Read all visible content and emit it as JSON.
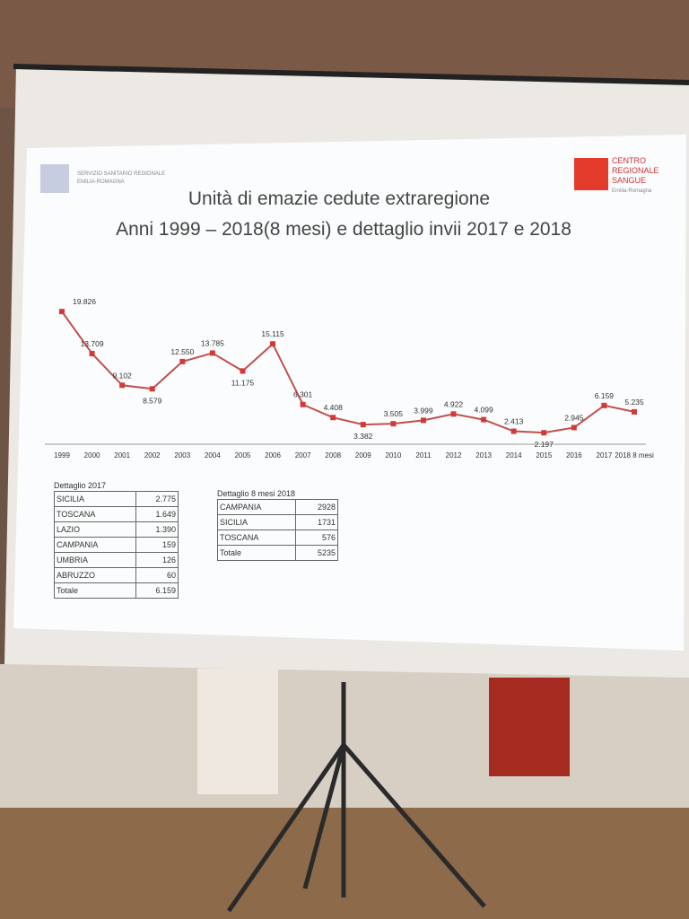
{
  "slide": {
    "header_left": [
      "SERVIZIO SANITARIO REGIONALE",
      "EMILIA-ROMAGNA"
    ],
    "header_right": [
      "CENTRO",
      "REGIONALE",
      "SANGUE",
      "Emilia-Romagna"
    ],
    "title": [
      "Unità di emazie cedute extraregione",
      "Anni 1999 – 2018(8 mesi) e dettaglio invii 2017 e 2018"
    ]
  },
  "chart_data": {
    "type": "line",
    "color": "#c0504d",
    "categories": [
      "1999",
      "2000",
      "2001",
      "2002",
      "2003",
      "2004",
      "2005",
      "2006",
      "2007",
      "2008",
      "2009",
      "2010",
      "2011",
      "2012",
      "2013",
      "2014",
      "2015",
      "2016",
      "2017",
      "2018 8 mesi"
    ],
    "values": [
      19826,
      13709,
      9102,
      8579,
      12550,
      13785,
      11175,
      15115,
      6301,
      4408,
      3382,
      3505,
      3999,
      4922,
      4099,
      2413,
      2197,
      2945,
      6159,
      5235
    ],
    "value_labels": [
      "19.826",
      "13.709",
      "9.102",
      "8.579",
      "12.550",
      "13.785",
      "11.175",
      "15.115",
      "6.301",
      "4.408",
      "3.382",
      "3.505",
      "3.999",
      "4.922",
      "4.099",
      "2.413",
      "2.197",
      "2.945",
      "6.159",
      "5.235"
    ]
  },
  "tables": [
    {
      "title": "Dettaglio 2017",
      "rows": [
        [
          "SICILIA",
          "2.775"
        ],
        [
          "TOSCANA",
          "1.649"
        ],
        [
          "LAZIO",
          "1.390"
        ],
        [
          "CAMPANIA",
          "159"
        ],
        [
          "UMBRIA",
          "126"
        ],
        [
          "ABRUZZO",
          "60"
        ],
        [
          "Totale",
          "6.159"
        ]
      ]
    },
    {
      "title": "Dettaglio 8 mesi 2018",
      "rows": [
        [
          "CAMPANIA",
          "2928"
        ],
        [
          "SICILIA",
          "1731"
        ],
        [
          "TOSCANA",
          "576"
        ],
        [
          "Totale",
          "5235"
        ]
      ]
    }
  ]
}
